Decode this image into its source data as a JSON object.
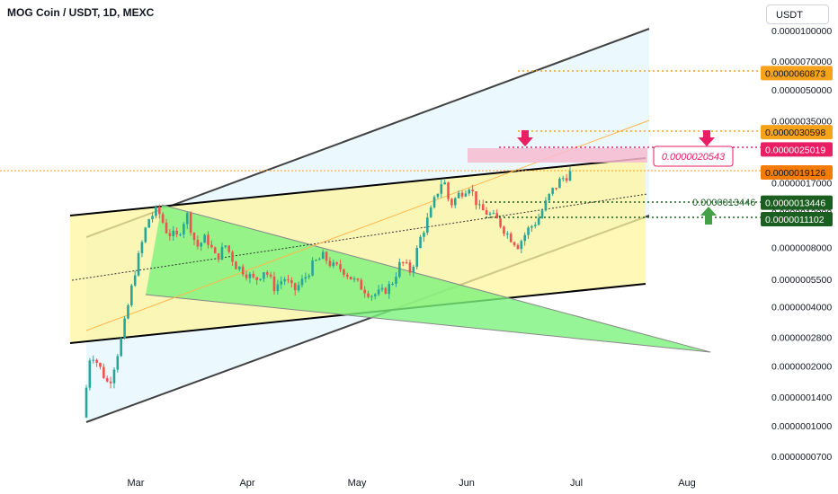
{
  "header": {
    "title": "MOG Coin / USDT, 1D, MEXC",
    "currency": "USDT"
  },
  "chart_data": {
    "type": "candlestick",
    "title": "MOG Coin / USDT, 1D, MEXC",
    "x_ticks": [
      "Mar",
      "Apr",
      "May",
      "Jun",
      "Jul",
      "Aug"
    ],
    "y_scale": "log",
    "y_ticks": [
      "0.0000100000",
      "0.0000070000",
      "0.0000050000",
      "0.0000035000",
      "0.0000025000",
      "0.0000017000",
      "0.0000012000",
      "0.0000008000",
      "0.0000005500",
      "0.0000004000",
      "0.0000002800",
      "0.0000002000",
      "0.0000001400",
      "0.0000001000",
      "0.0000000700"
    ],
    "price_labels": [
      {
        "text": "0.0000060873",
        "value": 6.0873e-06,
        "color": "#f7a21b"
      },
      {
        "text": "0.0000030598",
        "value": 3.0598e-06,
        "color": "#f7a21b"
      },
      {
        "text": "0.0000025019",
        "value": 2.5019e-06,
        "color": "#e91e63"
      },
      {
        "text": "0.0000019126",
        "value": 1.9126e-06,
        "color": "#f57c00"
      },
      {
        "text": "0.0000013446",
        "value": 1.3446e-06,
        "color": "#1b5e20"
      },
      {
        "text": "0.0000011102",
        "value": 1.1102e-06,
        "color": "#1b5e20"
      }
    ],
    "annotations": [
      {
        "text": "0.0000020543",
        "value": 2.0543e-06,
        "color": "#e91e63"
      },
      {
        "text": "0.0000013446",
        "value": 1.3446e-06,
        "color": "#1b5e20"
      }
    ],
    "price_path": [
      [
        0.0,
        1.1e-07
      ],
      [
        0.012,
        2.4e-07
      ],
      [
        0.025,
        2e-07
      ],
      [
        0.04,
        1.6e-07
      ],
      [
        0.06,
        2.8e-07
      ],
      [
        0.08,
        6e-07
      ],
      [
        0.1,
        1.1e-06
      ],
      [
        0.115,
        1.24e-06
      ],
      [
        0.13,
        9.5e-07
      ],
      [
        0.145,
        9e-07
      ],
      [
        0.16,
        1.18e-06
      ],
      [
        0.175,
        8e-07
      ],
      [
        0.19,
        9e-07
      ],
      [
        0.205,
        7e-07
      ],
      [
        0.22,
        8.2e-07
      ],
      [
        0.235,
        6.5e-07
      ],
      [
        0.25,
        6e-07
      ],
      [
        0.265,
        5.4e-07
      ],
      [
        0.28,
        6.2e-07
      ],
      [
        0.295,
        5e-07
      ],
      [
        0.31,
        5.6e-07
      ],
      [
        0.325,
        4.8e-07
      ],
      [
        0.34,
        5.5e-07
      ],
      [
        0.355,
        6.6e-07
      ],
      [
        0.37,
        7.2e-07
      ],
      [
        0.385,
        6.4e-07
      ],
      [
        0.4,
        6.2e-07
      ],
      [
        0.415,
        5.5e-07
      ],
      [
        0.43,
        5e-07
      ],
      [
        0.445,
        4.6e-07
      ],
      [
        0.46,
        4.7e-07
      ],
      [
        0.475,
        5.2e-07
      ],
      [
        0.49,
        6.8e-07
      ],
      [
        0.505,
        6e-07
      ],
      [
        0.52,
        9e-07
      ],
      [
        0.535,
        1.2e-06
      ],
      [
        0.545,
        1.5e-06
      ],
      [
        0.555,
        1.8e-06
      ],
      [
        0.565,
        1.3e-06
      ],
      [
        0.58,
        1.5e-06
      ],
      [
        0.595,
        1.65e-06
      ],
      [
        0.61,
        1.25e-06
      ],
      [
        0.625,
        1.18e-06
      ],
      [
        0.64,
        1.08e-06
      ],
      [
        0.655,
        9.2e-07
      ],
      [
        0.67,
        8.2e-07
      ],
      [
        0.685,
        9.8e-07
      ],
      [
        0.7,
        1.1e-06
      ],
      [
        0.72,
        1.5e-06
      ],
      [
        0.735,
        1.75e-06
      ],
      [
        0.75,
        1.9e-06
      ]
    ]
  }
}
